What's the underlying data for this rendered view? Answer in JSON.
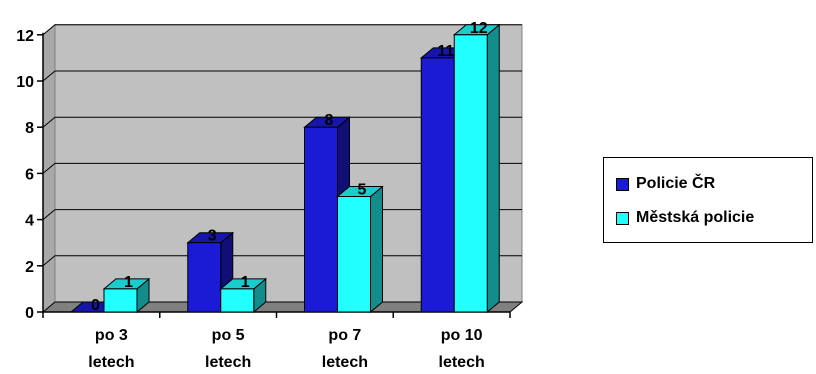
{
  "chart_data": {
    "type": "bar",
    "categories": [
      [
        "po 3",
        "letech"
      ],
      [
        "po 5",
        "letech"
      ],
      [
        "po 7",
        "letech"
      ],
      [
        "po 10",
        "letech"
      ]
    ],
    "series": [
      {
        "name": "Policie ČR",
        "values": [
          0,
          3,
          8,
          11
        ],
        "color": "#1b1bd6"
      },
      {
        "name": "Městská policie",
        "values": [
          1,
          1,
          5,
          12
        ],
        "color": "#22ffff"
      }
    ],
    "ylim": [
      0,
      12
    ],
    "yticks": [
      0,
      2,
      4,
      6,
      8,
      10,
      12
    ],
    "grid": true,
    "legend": "right",
    "title": "",
    "xlabel": "",
    "ylabel": ""
  },
  "legend": {
    "items": [
      {
        "label": "Policie ČR"
      },
      {
        "label": "Městská policie"
      }
    ]
  },
  "colors": {
    "wall": "#c0c0c0",
    "floor": "#808080",
    "grid": "#000000"
  }
}
